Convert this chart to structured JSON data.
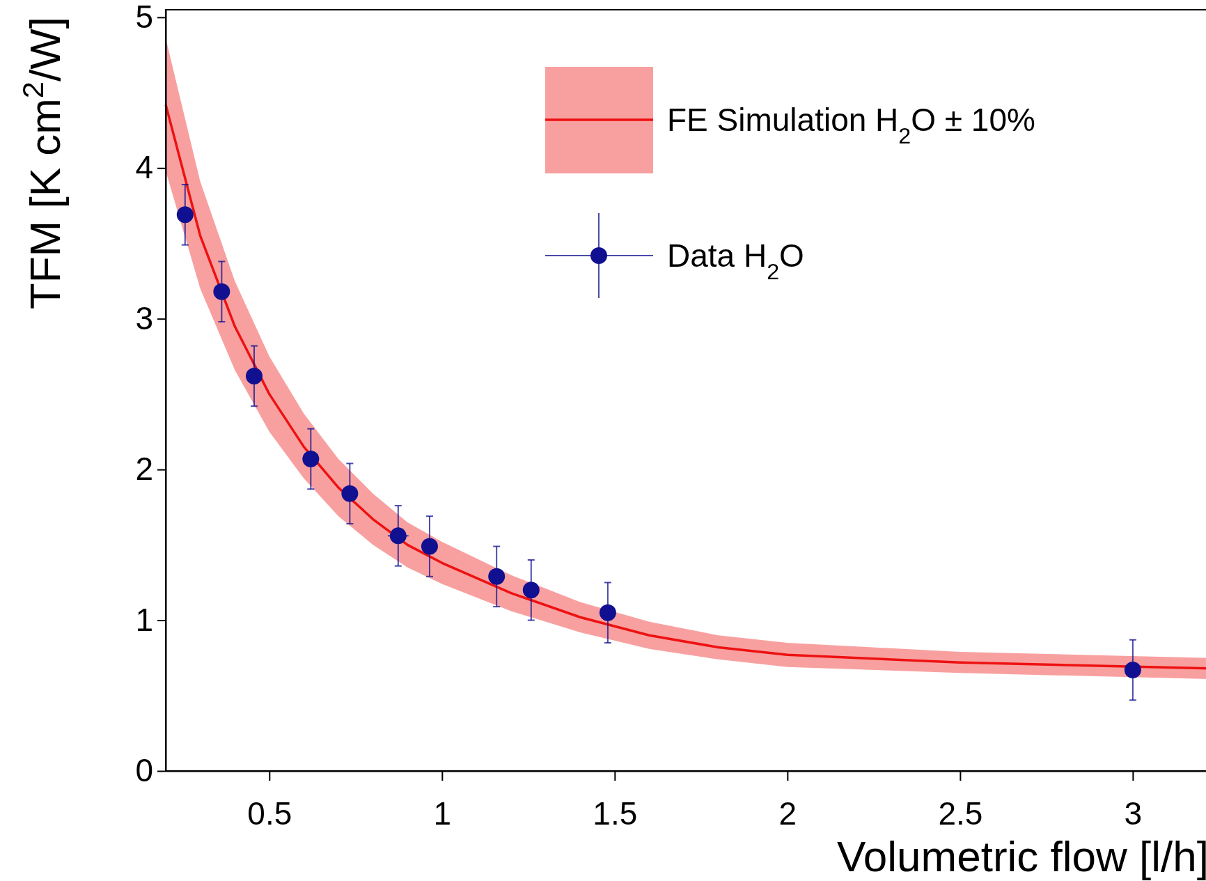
{
  "chart_data": {
    "type": "line",
    "xlabel": "Volumetric flow [l/h]",
    "ylabel": "TFM [K cm$^{2}$/W]",
    "xlim": [
      0.2,
      3.22
    ],
    "ylim": [
      0,
      5.05
    ],
    "xticks": [
      0.5,
      1,
      1.5,
      2,
      2.5,
      3
    ],
    "yticks": [
      0,
      1,
      2,
      3,
      4,
      5
    ],
    "grid": false,
    "legend": "top right",
    "series": [
      {
        "name": "FE Simulation H$_{2}$O ± 10%",
        "color": "#ee1111",
        "marker": "none",
        "x": [
          0.2,
          0.3,
          0.4,
          0.5,
          0.6,
          0.7,
          0.8,
          0.9,
          1.0,
          1.2,
          1.4,
          1.6,
          1.8,
          2.0,
          2.5,
          3.22
        ],
        "values": [
          4.42,
          3.55,
          2.95,
          2.5,
          2.15,
          1.88,
          1.67,
          1.5,
          1.38,
          1.18,
          1.02,
          0.9,
          0.82,
          0.77,
          0.72,
          0.68
        ],
        "lower": [
          3.98,
          3.2,
          2.66,
          2.25,
          1.94,
          1.69,
          1.5,
          1.35,
          1.24,
          1.06,
          0.92,
          0.81,
          0.74,
          0.69,
          0.65,
          0.61
        ],
        "upper": [
          4.86,
          3.91,
          3.25,
          2.75,
          2.37,
          2.07,
          1.84,
          1.65,
          1.52,
          1.3,
          1.12,
          0.99,
          0.9,
          0.85,
          0.79,
          0.75
        ]
      },
      {
        "name": "Data H$_{2}$O",
        "type": "scatter",
        "color": "#101090",
        "marker": "circle",
        "x": [
          0.256,
          0.362,
          0.456,
          0.62,
          0.733,
          0.873,
          0.964,
          1.158,
          1.258,
          1.48,
          3.0
        ],
        "values": [
          3.69,
          3.18,
          2.62,
          2.07,
          1.84,
          1.56,
          1.49,
          1.29,
          1.2,
          1.05,
          0.67
        ],
        "errors": [
          0.2,
          0.2,
          0.2,
          0.2,
          0.2,
          0.2,
          0.2,
          0.2,
          0.2,
          0.2,
          0.2
        ],
        "xerrors": [
          0.02,
          0.02,
          0.02,
          0.02,
          0.02,
          0.03,
          0.02,
          0.02,
          0.02,
          0.02,
          0.02
        ]
      }
    ]
  }
}
